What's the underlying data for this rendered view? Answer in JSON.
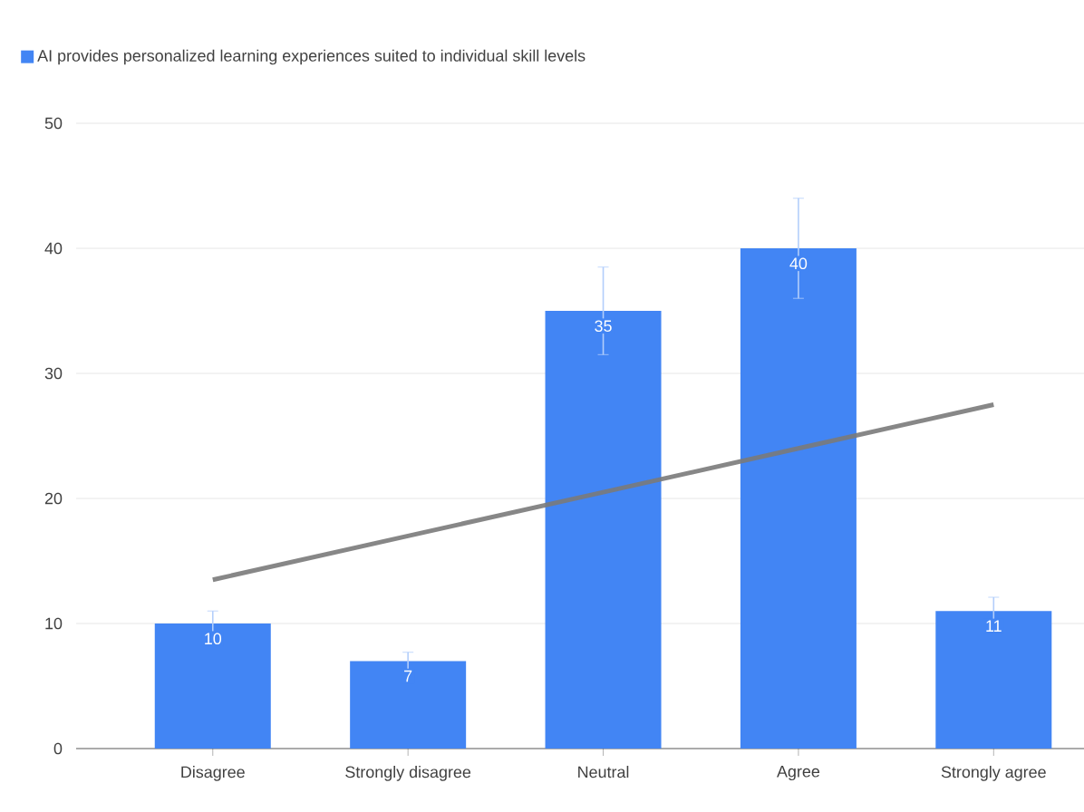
{
  "chart_data": {
    "type": "bar",
    "categories": [
      "Disagree",
      "Strongly disagree",
      "Neutral",
      "Agree",
      "Strongly agree"
    ],
    "series": [
      {
        "name": "AI provides personalized learning experiences suited to individual skill levels",
        "color": "#4285f4",
        "values": [
          10,
          7,
          35,
          40,
          11
        ],
        "value_labels": [
          "10",
          "7",
          "35",
          "40",
          "11"
        ],
        "errors": [
          1,
          0.7,
          3.5,
          4,
          1.1
        ]
      },
      {
        "type": "line",
        "color": "#7a7a7a",
        "values": [
          13.5,
          17,
          20.5,
          24,
          27.5
        ]
      }
    ],
    "ylim": [
      0,
      50
    ],
    "yticks": [
      0,
      10,
      20,
      30,
      40,
      50
    ],
    "grid": "y",
    "legend": "top left"
  }
}
